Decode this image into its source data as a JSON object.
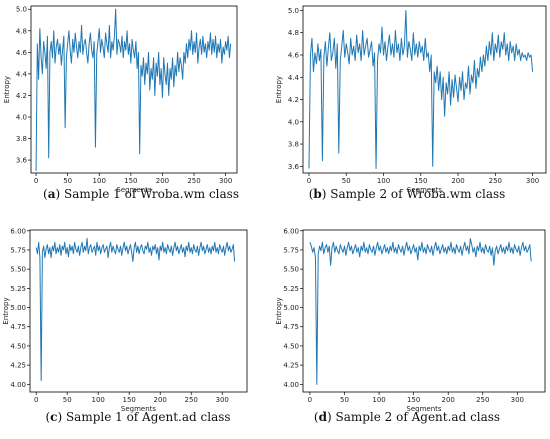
{
  "chart_data": [
    {
      "type": "line",
      "caption": {
        "letter": "a",
        "text": " Sample 1 of Wroba.wm class"
      },
      "xlabel": "Segments",
      "ylabel": "Entropy",
      "xlim": [
        -8,
        318
      ],
      "ylim": [
        3.48,
        5.03
      ],
      "xticks": [
        0,
        50,
        100,
        150,
        200,
        250,
        300
      ],
      "yticks": [
        3.6,
        3.8,
        4.0,
        4.2,
        4.4,
        4.6,
        4.8,
        5.0
      ],
      "ytick_labels": [
        "3.6",
        "3.8",
        "4.0",
        "4.2",
        "4.4",
        "4.6",
        "4.8",
        "5.0"
      ],
      "color": "#1f77b4",
      "x_start": 0,
      "x_step": 2,
      "series": [
        {
          "values": [
            3.5,
            4.68,
            4.35,
            4.82,
            4.55,
            4.4,
            4.7,
            4.6,
            4.45,
            4.75,
            3.62,
            4.6,
            4.7,
            4.55,
            4.8,
            4.5,
            4.65,
            4.72,
            4.58,
            4.68,
            4.48,
            4.62,
            4.75,
            3.9,
            4.55,
            4.68,
            4.8,
            4.62,
            4.5,
            4.72,
            4.6,
            4.78,
            4.65,
            4.55,
            4.7,
            4.6,
            4.85,
            4.58,
            4.68,
            4.72,
            4.6,
            4.5,
            4.68,
            4.78,
            4.62,
            4.55,
            4.7,
            3.72,
            4.58,
            4.7,
            4.82,
            4.6,
            4.72,
            4.65,
            4.55,
            4.78,
            4.68,
            4.6,
            4.85,
            4.55,
            4.7,
            4.62,
            4.75,
            5.0,
            4.58,
            4.72,
            4.68,
            4.6,
            4.75,
            4.55,
            4.7,
            4.62,
            4.8,
            4.58,
            4.68,
            4.5,
            4.72,
            4.62,
            4.55,
            4.7,
            4.45,
            4.6,
            3.66,
            4.48,
            4.38,
            4.55,
            4.3,
            4.5,
            4.4,
            4.6,
            4.25,
            4.45,
            4.35,
            4.55,
            4.2,
            4.5,
            4.38,
            4.6,
            4.3,
            4.45,
            4.18,
            4.55,
            4.4,
            4.3,
            4.5,
            4.2,
            4.45,
            4.35,
            4.55,
            4.28,
            4.48,
            4.38,
            4.6,
            4.42,
            4.55,
            4.48,
            4.35,
            4.6,
            4.5,
            4.68,
            4.55,
            4.72,
            4.62,
            4.8,
            4.58,
            4.7,
            4.6,
            4.78,
            4.5,
            4.65,
            4.72,
            4.58,
            4.75,
            4.6,
            4.68,
            4.55,
            4.7,
            4.62,
            4.78,
            4.58,
            4.72,
            4.6,
            4.75,
            4.55,
            4.68,
            4.6,
            4.72,
            4.5,
            4.65,
            4.58,
            4.7,
            4.62,
            4.75,
            4.55,
            4.68
          ]
        }
      ]
    },
    {
      "type": "line",
      "caption": {
        "letter": "b",
        "text": " Sample 2 of Wroba.wm class"
      },
      "xlabel": "Segments",
      "ylabel": "Entropy",
      "xlim": [
        -8,
        318
      ],
      "ylim": [
        3.54,
        5.04
      ],
      "xticks": [
        0,
        50,
        100,
        150,
        200,
        250,
        300
      ],
      "yticks": [
        3.6,
        3.8,
        4.0,
        4.2,
        4.4,
        4.6,
        4.8,
        5.0
      ],
      "ytick_labels": [
        "3.6",
        "3.8",
        "4.0",
        "4.2",
        "4.4",
        "4.6",
        "4.8",
        "5.0"
      ],
      "color": "#1f77b4",
      "x_start": 0,
      "x_step": 2,
      "series": [
        {
          "values": [
            3.58,
            4.6,
            4.75,
            4.45,
            4.62,
            4.52,
            4.7,
            4.55,
            4.65,
            3.65,
            4.58,
            4.72,
            4.5,
            4.66,
            4.8,
            4.55,
            4.62,
            4.75,
            4.48,
            4.7,
            3.72,
            4.55,
            4.68,
            4.82,
            4.58,
            4.7,
            4.62,
            4.52,
            4.75,
            4.6,
            4.68,
            4.55,
            4.78,
            4.62,
            4.7,
            4.55,
            4.82,
            4.6,
            4.68,
            4.75,
            4.58,
            4.65,
            4.72,
            4.5,
            4.62,
            3.58,
            4.55,
            4.7,
            4.62,
            4.85,
            4.6,
            4.72,
            4.55,
            4.68,
            4.78,
            4.6,
            4.7,
            4.58,
            4.82,
            4.62,
            4.7,
            4.55,
            4.75,
            4.6,
            4.68,
            5.0,
            4.58,
            4.72,
            4.65,
            4.55,
            4.8,
            4.6,
            4.7,
            4.58,
            4.72,
            4.62,
            4.68,
            4.55,
            4.75,
            4.58,
            4.62,
            4.45,
            4.6,
            3.6,
            4.45,
            4.35,
            4.5,
            4.28,
            4.45,
            4.2,
            4.4,
            4.05,
            4.35,
            4.25,
            4.45,
            4.15,
            4.38,
            4.22,
            4.42,
            4.3,
            4.18,
            4.4,
            4.28,
            4.45,
            4.2,
            4.35,
            4.3,
            4.5,
            4.25,
            4.42,
            4.35,
            4.55,
            4.3,
            4.48,
            4.4,
            4.58,
            4.45,
            4.6,
            4.5,
            4.68,
            4.55,
            4.72,
            4.6,
            4.8,
            4.55,
            4.7,
            4.62,
            4.78,
            4.58,
            4.72,
            4.65,
            4.8,
            4.6,
            4.7,
            4.55,
            4.72,
            4.62,
            4.68,
            4.55,
            4.7,
            4.6,
            4.65,
            4.55,
            4.62,
            4.58,
            4.6,
            4.55,
            4.62,
            4.58,
            4.6,
            4.45
          ]
        }
      ]
    },
    {
      "type": "line",
      "caption": {
        "letter": "c",
        "text": " Sample 1 of Agent.ad class"
      },
      "xlabel": "Segments",
      "ylabel": "Entropy",
      "xlim": [
        -10,
        340
      ],
      "ylim": [
        3.9,
        6.01
      ],
      "xticks": [
        0,
        50,
        100,
        150,
        200,
        250,
        300
      ],
      "yticks": [
        4.0,
        4.25,
        4.5,
        4.75,
        5.0,
        5.25,
        5.5,
        5.75,
        6.0
      ],
      "ytick_labels": [
        "4.00",
        "4.25",
        "4.50",
        "4.75",
        "5.00",
        "5.25",
        "5.50",
        "5.75",
        "6.00"
      ],
      "color": "#1f77b4",
      "x_start": 0,
      "x_step": 2,
      "series": [
        {
          "values": [
            5.78,
            5.7,
            5.85,
            5.65,
            4.05,
            5.72,
            5.8,
            5.65,
            5.76,
            5.82,
            5.7,
            5.78,
            5.65,
            5.8,
            5.74,
            5.85,
            5.7,
            5.78,
            5.72,
            5.82,
            5.68,
            5.8,
            5.75,
            5.85,
            5.7,
            5.78,
            5.66,
            5.82,
            5.74,
            5.8,
            5.7,
            5.85,
            5.76,
            5.72,
            5.8,
            5.68,
            5.78,
            5.85,
            5.72,
            5.8,
            5.74,
            5.9,
            5.7,
            5.78,
            5.82,
            5.72,
            5.76,
            5.8,
            5.68,
            5.85,
            5.74,
            5.8,
            5.7,
            5.78,
            5.82,
            5.72,
            5.76,
            5.8,
            5.65,
            5.78,
            5.85,
            5.72,
            5.8,
            5.74,
            5.7,
            5.82,
            5.76,
            5.72,
            5.8,
            5.68,
            5.78,
            5.85,
            5.74,
            5.8,
            5.7,
            5.76,
            5.82,
            5.72,
            5.6,
            5.78,
            5.85,
            5.72,
            5.8,
            5.7,
            5.78,
            5.82,
            5.74,
            5.7,
            5.8,
            5.76,
            5.85,
            5.72,
            5.78,
            5.68,
            5.8,
            5.75,
            5.82,
            5.7,
            5.78,
            5.62,
            5.8,
            5.74,
            5.85,
            5.72,
            5.78,
            5.7,
            5.82,
            5.76,
            5.72,
            5.8,
            5.68,
            5.78,
            5.85,
            5.74,
            5.8,
            5.7,
            5.76,
            5.82,
            5.72,
            5.78,
            5.66,
            5.8,
            5.74,
            5.85,
            5.72,
            5.78,
            5.7,
            5.82,
            5.75,
            5.72,
            5.8,
            5.68,
            5.78,
            5.85,
            5.74,
            5.8,
            5.7,
            5.76,
            5.82,
            5.72,
            5.78,
            5.7,
            5.8,
            5.74,
            5.85,
            5.72,
            5.78,
            5.7,
            5.82,
            5.76,
            5.72,
            5.8,
            5.68,
            5.78,
            5.85,
            5.74,
            5.8,
            5.72,
            5.76,
            5.82,
            5.6
          ]
        }
      ]
    },
    {
      "type": "line",
      "caption": {
        "letter": "d",
        "text": " Sample 2 of Agent.ad class"
      },
      "xlabel": "Segments",
      "ylabel": "Entropy",
      "xlim": [
        -10,
        340
      ],
      "ylim": [
        3.9,
        6.01
      ],
      "xticks": [
        0,
        50,
        100,
        150,
        200,
        250,
        300
      ],
      "yticks": [
        4.0,
        4.25,
        4.5,
        4.75,
        5.0,
        5.25,
        5.5,
        5.75,
        6.0
      ],
      "ytick_labels": [
        "4.00",
        "4.25",
        "4.50",
        "4.75",
        "5.00",
        "5.25",
        "5.50",
        "5.75",
        "6.00"
      ],
      "color": "#1f77b4",
      "x_start": 0,
      "x_step": 2,
      "series": [
        {
          "values": [
            5.85,
            5.8,
            5.72,
            5.78,
            5.65,
            4.0,
            5.7,
            5.8,
            5.74,
            5.85,
            5.7,
            5.78,
            5.82,
            5.72,
            5.8,
            5.55,
            5.78,
            5.85,
            5.72,
            5.8,
            5.74,
            5.7,
            5.82,
            5.76,
            5.72,
            5.8,
            5.68,
            5.78,
            5.85,
            5.74,
            5.8,
            5.7,
            5.76,
            5.82,
            5.72,
            5.78,
            5.66,
            5.8,
            5.74,
            5.85,
            5.72,
            5.78,
            5.7,
            5.82,
            5.75,
            5.72,
            5.8,
            5.68,
            5.78,
            5.85,
            5.74,
            5.8,
            5.7,
            5.76,
            5.82,
            5.72,
            5.78,
            5.7,
            5.8,
            5.74,
            5.85,
            5.72,
            5.78,
            5.7,
            5.82,
            5.76,
            5.72,
            5.8,
            5.68,
            5.78,
            5.85,
            5.74,
            5.8,
            5.7,
            5.76,
            5.82,
            5.72,
            5.78,
            5.62,
            5.8,
            5.74,
            5.85,
            5.72,
            5.78,
            5.7,
            5.82,
            5.76,
            5.72,
            5.8,
            5.68,
            5.78,
            5.85,
            5.74,
            5.8,
            5.7,
            5.76,
            5.82,
            5.72,
            5.78,
            5.7,
            5.8,
            5.74,
            5.85,
            5.72,
            5.78,
            5.7,
            5.82,
            5.76,
            5.72,
            5.8,
            5.68,
            5.78,
            5.85,
            5.74,
            5.8,
            5.7,
            5.9,
            5.82,
            5.72,
            5.78,
            5.66,
            5.8,
            5.74,
            5.85,
            5.72,
            5.78,
            5.7,
            5.82,
            5.75,
            5.72,
            5.8,
            5.68,
            5.78,
            5.55,
            5.74,
            5.8,
            5.7,
            5.76,
            5.82,
            5.72,
            5.78,
            5.7,
            5.8,
            5.74,
            5.85,
            5.72,
            5.78,
            5.7,
            5.82,
            5.76,
            5.72,
            5.8,
            5.68,
            5.78,
            5.85,
            5.74,
            5.8,
            5.72,
            5.76,
            5.82,
            5.6
          ]
        }
      ]
    }
  ]
}
